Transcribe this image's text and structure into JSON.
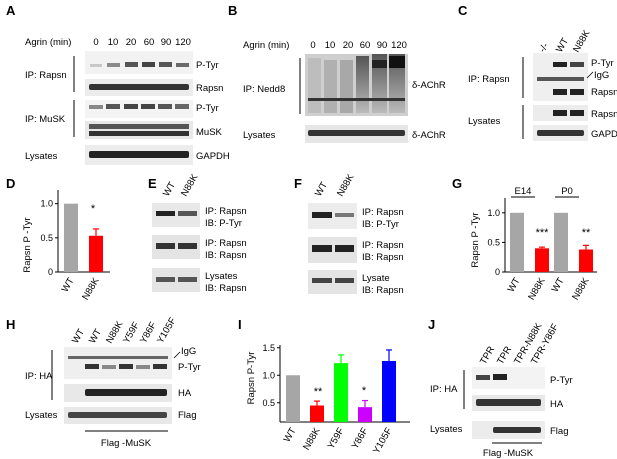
{
  "panels": {
    "A": {
      "letter": "A",
      "agrin_label": "Agrin (min)",
      "timepoints": [
        "0",
        "10",
        "20",
        "60",
        "90",
        "120"
      ],
      "ip_rapsn": "IP: Rapsn",
      "ip_musk": "IP: MuSK",
      "lysates": "Lysates",
      "blots": [
        "P-Tyr",
        "Rapsn",
        "P-Tyr",
        "MuSK",
        "GAPDH"
      ]
    },
    "B": {
      "letter": "B",
      "agrin_label": "Agrin (min)",
      "timepoints": [
        "0",
        "10",
        "20",
        "60",
        "90",
        "120"
      ],
      "ip": "IP:  Nedd8",
      "lysates": "Lysates",
      "blots": [
        "δ-AChR",
        "δ-AChR"
      ]
    },
    "C": {
      "letter": "C",
      "lanes": [
        "-/-",
        "WT",
        "N88K"
      ],
      "ip": "IP:  Rapsn",
      "lysates": "Lysates",
      "blots": [
        "P-Tyr",
        "IgG",
        "Rapsn",
        "Rapsn",
        "GAPDH"
      ]
    },
    "D": {
      "letter": "D",
      "ylabel": "Rapsn P -Tyr",
      "significance": "*"
    },
    "E": {
      "letter": "E",
      "lanes": [
        "WT",
        "N88K"
      ],
      "labels": [
        [
          "IP: Rapsn",
          "IB: P-Tyr"
        ],
        [
          "IP: Rapsn",
          "IB: Rapsn"
        ],
        [
          "Lysates",
          "IB: Rapsn"
        ]
      ]
    },
    "F": {
      "letter": "F",
      "lanes": [
        "WT",
        "N88K"
      ],
      "labels": [
        [
          "IP: Rapsn",
          "IB: P-Tyr"
        ],
        [
          "IP: Rapsn",
          "IB: Rapsn"
        ],
        [
          "Lysate",
          "IB: Rapsn"
        ]
      ]
    },
    "G": {
      "letter": "G",
      "ylabel": "Rapsn P -Tyr",
      "groups": [
        "E14",
        "P0"
      ],
      "significance": [
        "***",
        "**"
      ]
    },
    "H": {
      "letter": "H",
      "lanes": [
        "WT",
        "WT",
        "N88K",
        "Y59F",
        "Y86F",
        "Y105F"
      ],
      "ip": "IP: HA",
      "lysates": "Lysates",
      "blots": [
        "IgG",
        "P-Tyr",
        "HA",
        "Flag"
      ],
      "flag_label": "Flag -MuSK"
    },
    "I": {
      "letter": "I",
      "ylabel": "Rapsn P-Tyr",
      "significance": [
        "**",
        "*"
      ]
    },
    "J": {
      "letter": "J",
      "lanes": [
        "TPR",
        "TPR",
        "TPR-N88K",
        "TPR-Y86F"
      ],
      "ip": "IP: HA",
      "lysates": "Lysates",
      "blots": [
        "P-Tyr",
        "HA",
        "Flag"
      ],
      "flag_label": "Flag -MuSK"
    }
  },
  "chart_data": [
    {
      "panel": "D",
      "type": "bar",
      "categories": [
        "WT",
        "N88K"
      ],
      "values": [
        1.0,
        0.53
      ],
      "errors": [
        0,
        0.1
      ],
      "colors": [
        "#a6a6a6",
        "#ff0000"
      ],
      "ylabel": "Rapsn P -Tyr",
      "yticks": [
        "0",
        "0.5",
        "1.0"
      ],
      "ylim": [
        0,
        1.2
      ]
    },
    {
      "panel": "G",
      "type": "bar",
      "categories": [
        "WT",
        "N88K",
        "WT",
        "N88K"
      ],
      "groups": [
        "E14",
        "E14",
        "P0",
        "P0"
      ],
      "values": [
        1.0,
        0.4,
        1.0,
        0.38
      ],
      "errors": [
        0,
        0.02,
        0,
        0.07
      ],
      "colors": [
        "#a6a6a6",
        "#ff0000",
        "#a6a6a6",
        "#ff0000"
      ],
      "ylabel": "Rapsn P -Tyr",
      "yticks": [
        "0",
        "0.5",
        "1.0"
      ],
      "ylim": [
        0,
        1.25
      ]
    },
    {
      "panel": "I",
      "type": "bar",
      "categories": [
        "WT",
        "N88K",
        "Y59F",
        "Y86F",
        "Y105F"
      ],
      "values": [
        1.0,
        0.45,
        1.22,
        0.42,
        1.26
      ],
      "errors": [
        0,
        0.08,
        0.15,
        0.12,
        0.2
      ],
      "colors": [
        "#a6a6a6",
        "#ff0000",
        "#00ff00",
        "#cc00ff",
        "#0000ff"
      ],
      "ylabel": "Rapsn P-Tyr",
      "yticks": [
        "0.5",
        "1.0",
        "1.5"
      ],
      "ylim": [
        0.15,
        1.55
      ]
    }
  ]
}
